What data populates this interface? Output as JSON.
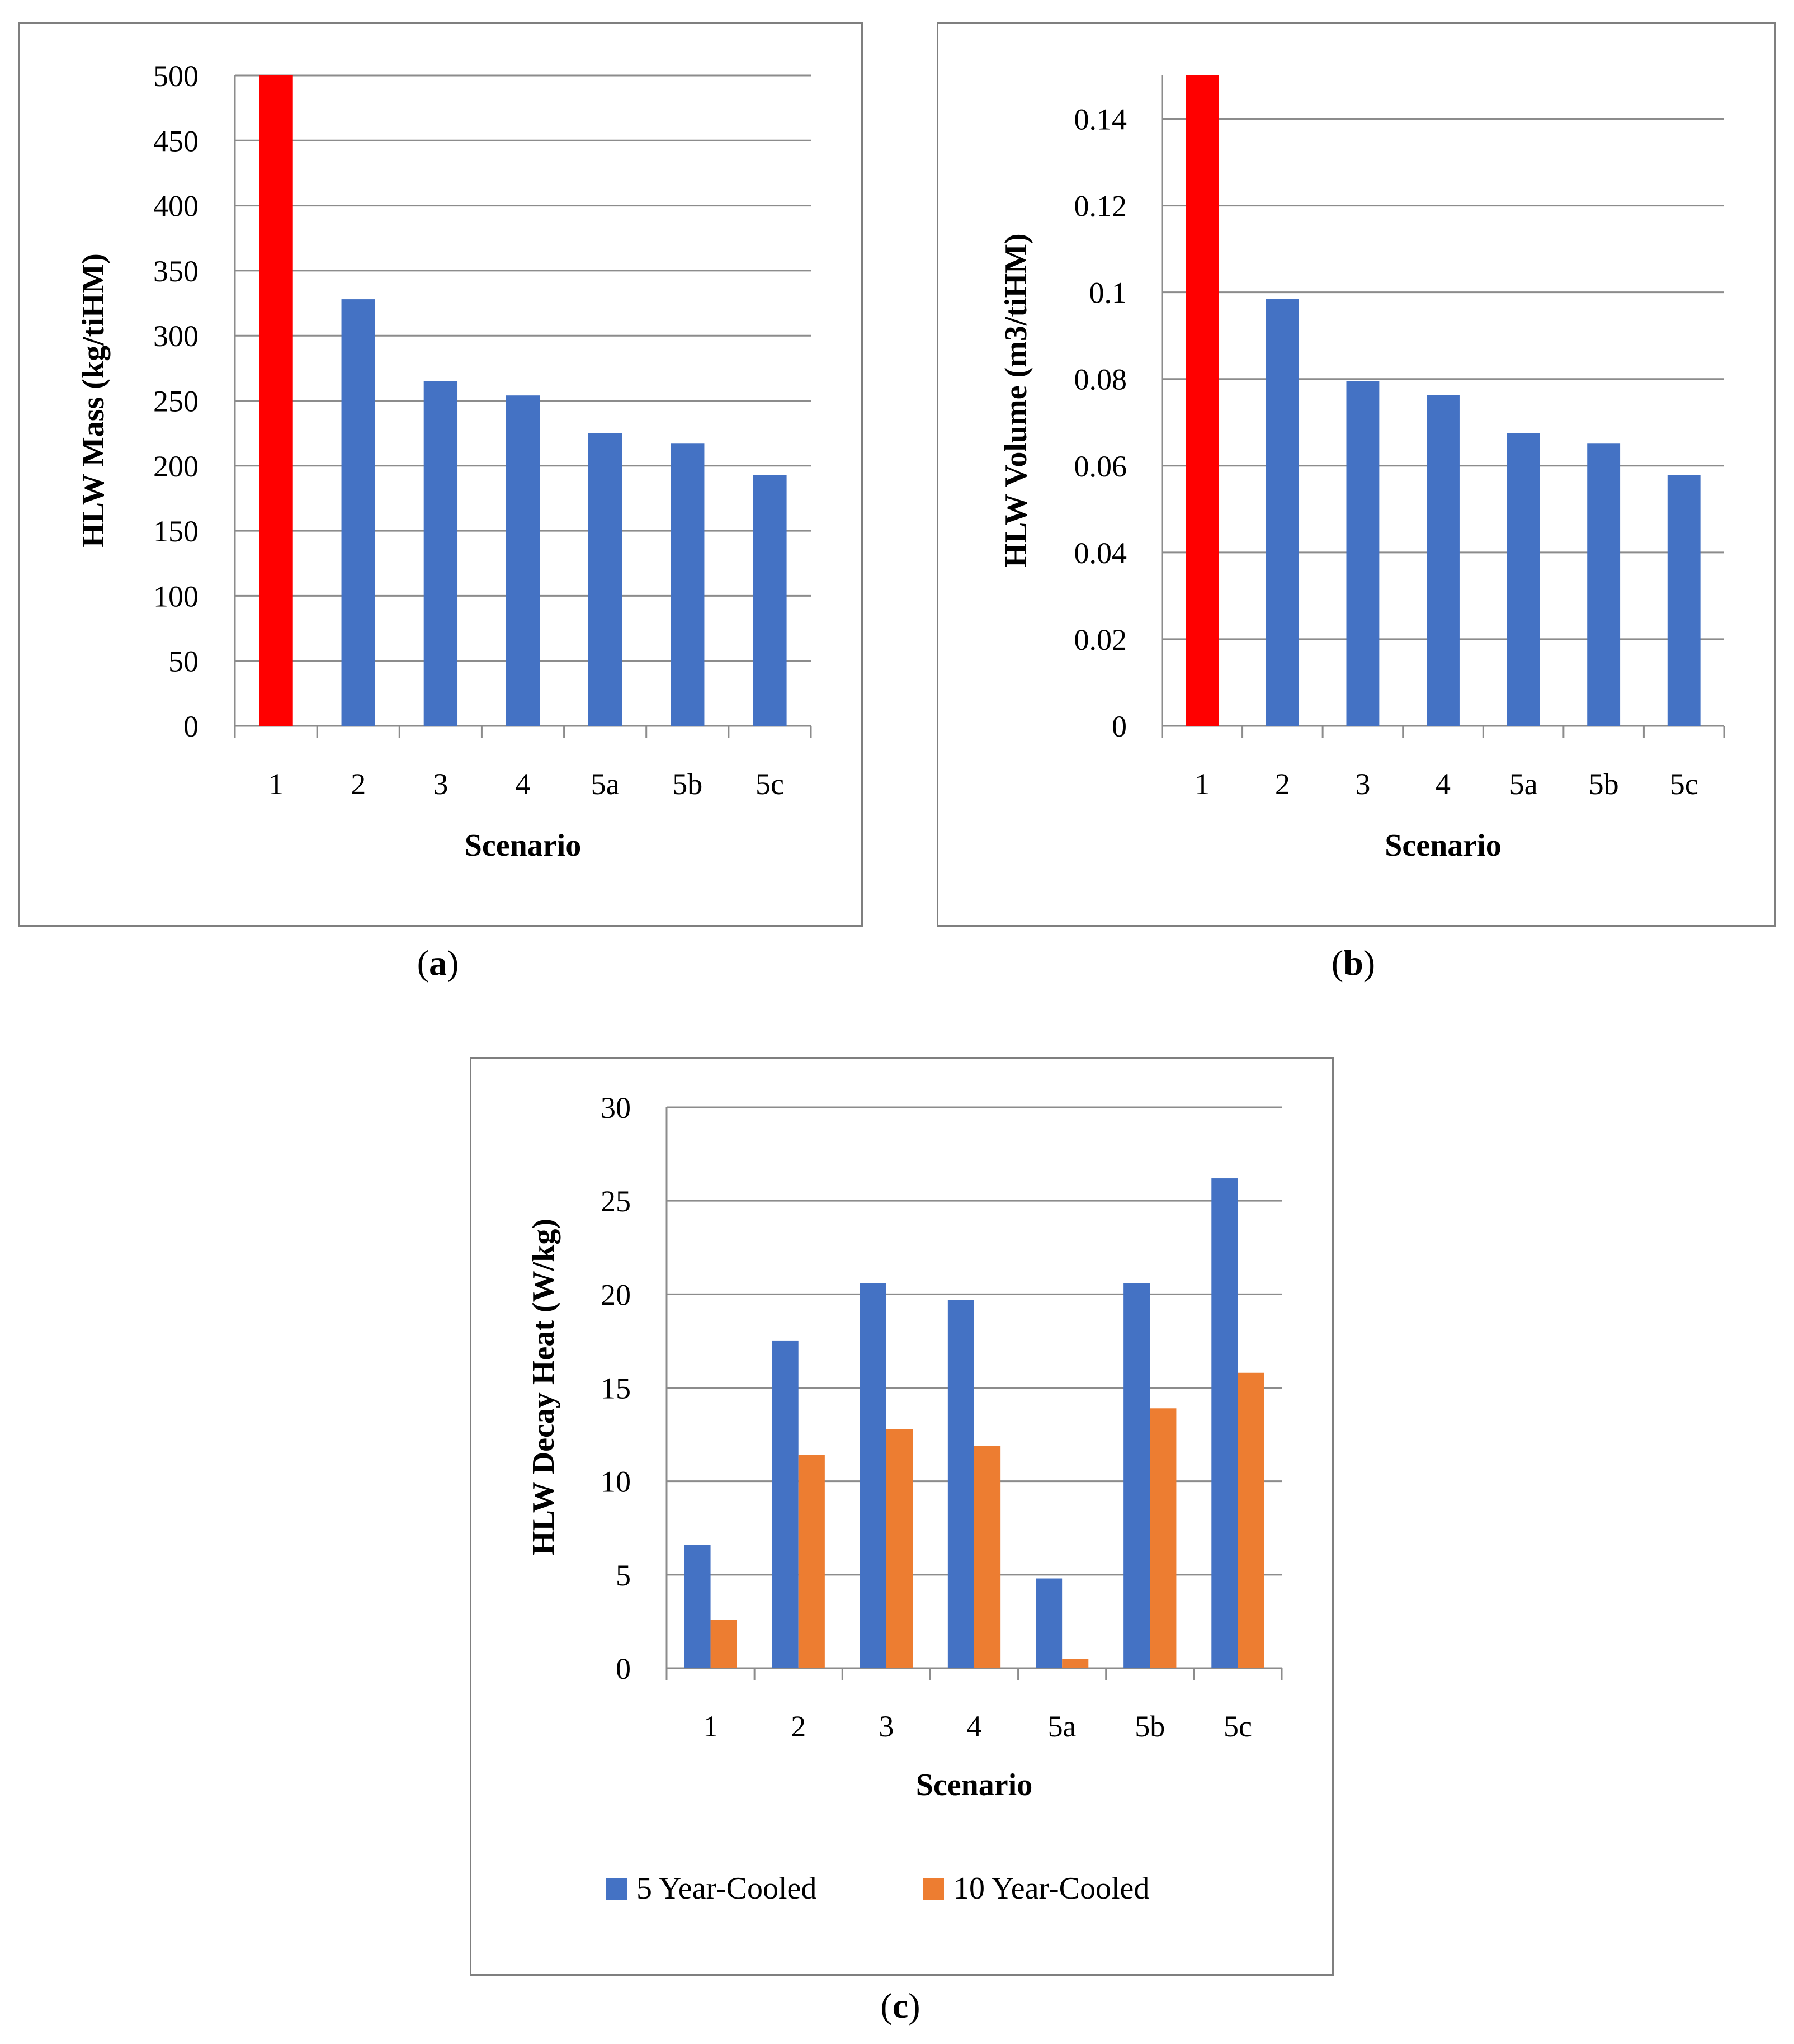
{
  "colors": {
    "blue": "#4472c4",
    "red": "#ff0000",
    "orange": "#ed7d31",
    "grid": "#8c8c8c"
  },
  "captions": {
    "a": "a",
    "b": "b",
    "c": "c"
  },
  "chart_data": [
    {
      "id": "a",
      "type": "bar",
      "title": "",
      "xlabel": "Scenario",
      "ylabel": "HLW Mass (kg/tiHM)",
      "categories": [
        "1",
        "2",
        "3",
        "4",
        "5a",
        "5b",
        "5c"
      ],
      "ylim": [
        0,
        500
      ],
      "yticks": [
        "0",
        "50",
        "100",
        "150",
        "200",
        "250",
        "300",
        "350",
        "400",
        "450",
        "500"
      ],
      "series": [
        {
          "name": "HLW Mass",
          "values": [
            500,
            328,
            265,
            254,
            225,
            217,
            193
          ],
          "colors": [
            "#ff0000",
            "#4472c4",
            "#4472c4",
            "#4472c4",
            "#4472c4",
            "#4472c4",
            "#4472c4"
          ]
        }
      ],
      "grid": true
    },
    {
      "id": "b",
      "type": "bar",
      "title": "",
      "xlabel": "Scenario",
      "ylabel": "HLW Volume (m3/tiHM)",
      "categories": [
        "1",
        "2",
        "3",
        "4",
        "5a",
        "5b",
        "5c"
      ],
      "ylim": [
        0,
        0.15
      ],
      "yticks": [
        "0",
        "0.02",
        "0.04",
        "0.06",
        "0.08",
        "0.1",
        "0.12",
        "0.14"
      ],
      "series": [
        {
          "name": "HLW Volume",
          "values": [
            0.15,
            0.0985,
            0.0795,
            0.0763,
            0.0675,
            0.0651,
            0.0578
          ],
          "colors": [
            "#ff0000",
            "#4472c4",
            "#4472c4",
            "#4472c4",
            "#4472c4",
            "#4472c4",
            "#4472c4"
          ]
        }
      ],
      "grid": true
    },
    {
      "id": "c",
      "type": "bar",
      "title": "",
      "xlabel": "Scenario",
      "ylabel": "HLW Decay Heat (W/kg)",
      "categories": [
        "1",
        "2",
        "3",
        "4",
        "5a",
        "5b",
        "5c"
      ],
      "ylim": [
        0,
        30
      ],
      "yticks": [
        "0",
        "5",
        "10",
        "15",
        "20",
        "25",
        "30"
      ],
      "series": [
        {
          "name": "5 Year-Cooled",
          "values": [
            6.6,
            17.5,
            20.6,
            19.7,
            4.8,
            20.6,
            26.2
          ],
          "color": "#4472c4"
        },
        {
          "name": "10 Year-Cooled",
          "values": [
            2.6,
            11.4,
            12.8,
            11.9,
            0.5,
            13.9,
            15.8
          ],
          "color": "#ed7d31"
        }
      ],
      "legend": "bottom",
      "grid": true
    }
  ]
}
